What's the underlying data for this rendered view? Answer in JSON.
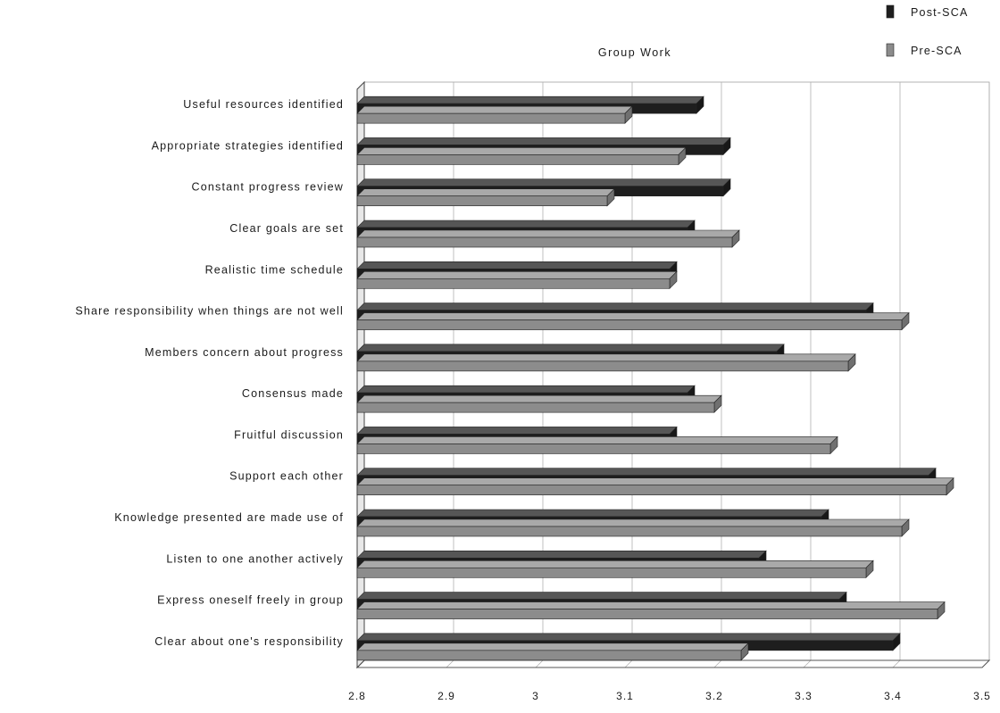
{
  "chart_data": {
    "type": "bar",
    "orientation": "horizontal",
    "title": "Group Work",
    "xlim": [
      2.8,
      3.5
    ],
    "x_ticks": [
      "2.8",
      "2.9",
      "3",
      "3.1",
      "3.2",
      "3.3",
      "3.4",
      "3.5"
    ],
    "grid": true,
    "legend_position": "top-right",
    "categories": [
      "Useful resources identified",
      "Appropriate strategies identified",
      "Constant progress review",
      "Clear goals are set",
      "Realistic time schedule",
      "Share responsibility when things are not well",
      "Members concern about progress",
      "Consensus made",
      "Fruitful discussion",
      "Support each other",
      "Knowledge presented are made use of",
      "Listen to one another actively",
      "Express oneself freely in group",
      "Clear about one's responsibility"
    ],
    "series": [
      {
        "name": "Post-SCA",
        "color": "#1e1e1e",
        "values": [
          3.18,
          3.21,
          3.21,
          3.17,
          3.15,
          3.37,
          3.27,
          3.17,
          3.15,
          3.44,
          3.32,
          3.25,
          3.34,
          3.4
        ]
      },
      {
        "name": "Pre-SCA",
        "color": "#8c8c8c",
        "values": [
          3.1,
          3.16,
          3.08,
          3.22,
          3.15,
          3.41,
          3.35,
          3.2,
          3.33,
          3.46,
          3.41,
          3.37,
          3.45,
          3.23
        ]
      }
    ]
  }
}
